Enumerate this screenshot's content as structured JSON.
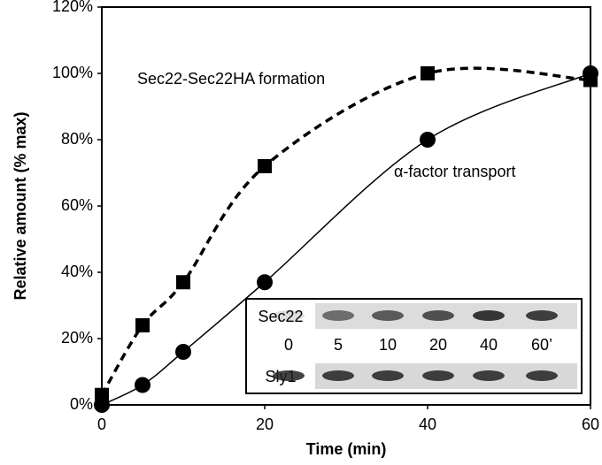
{
  "chart_data": {
    "type": "line",
    "x_label": "Time (min)",
    "y_label": "Relative amount (% max)",
    "xlim": [
      0,
      60
    ],
    "xticks": [
      0,
      20,
      40,
      60
    ],
    "ylim": [
      0,
      120
    ],
    "yticks": [
      {
        "value": 0,
        "label": "0%"
      },
      {
        "value": 20,
        "label": "20%"
      },
      {
        "value": 40,
        "label": "40%"
      },
      {
        "value": 60,
        "label": "60%"
      },
      {
        "value": 80,
        "label": "80%"
      },
      {
        "value": 100,
        "label": "100%"
      },
      {
        "value": 120,
        "label": "120%"
      }
    ],
    "x": [
      0,
      5,
      10,
      20,
      40,
      60
    ],
    "series": [
      {
        "name": "Sec22-Sec22HA formation",
        "color": "#000000",
        "marker": "square",
        "dashed": true,
        "values": [
          3,
          24,
          37,
          72,
          100,
          98
        ]
      },
      {
        "name": "α-factor transport",
        "color": "#000000",
        "marker": "circle",
        "dashed": false,
        "values": [
          0,
          6,
          16,
          37,
          80,
          100
        ]
      }
    ],
    "inset": {
      "rows": [
        "Sec22",
        "Sly1"
      ],
      "lanes": [
        "0",
        "5",
        "10",
        "20",
        "40",
        "60’"
      ]
    }
  }
}
